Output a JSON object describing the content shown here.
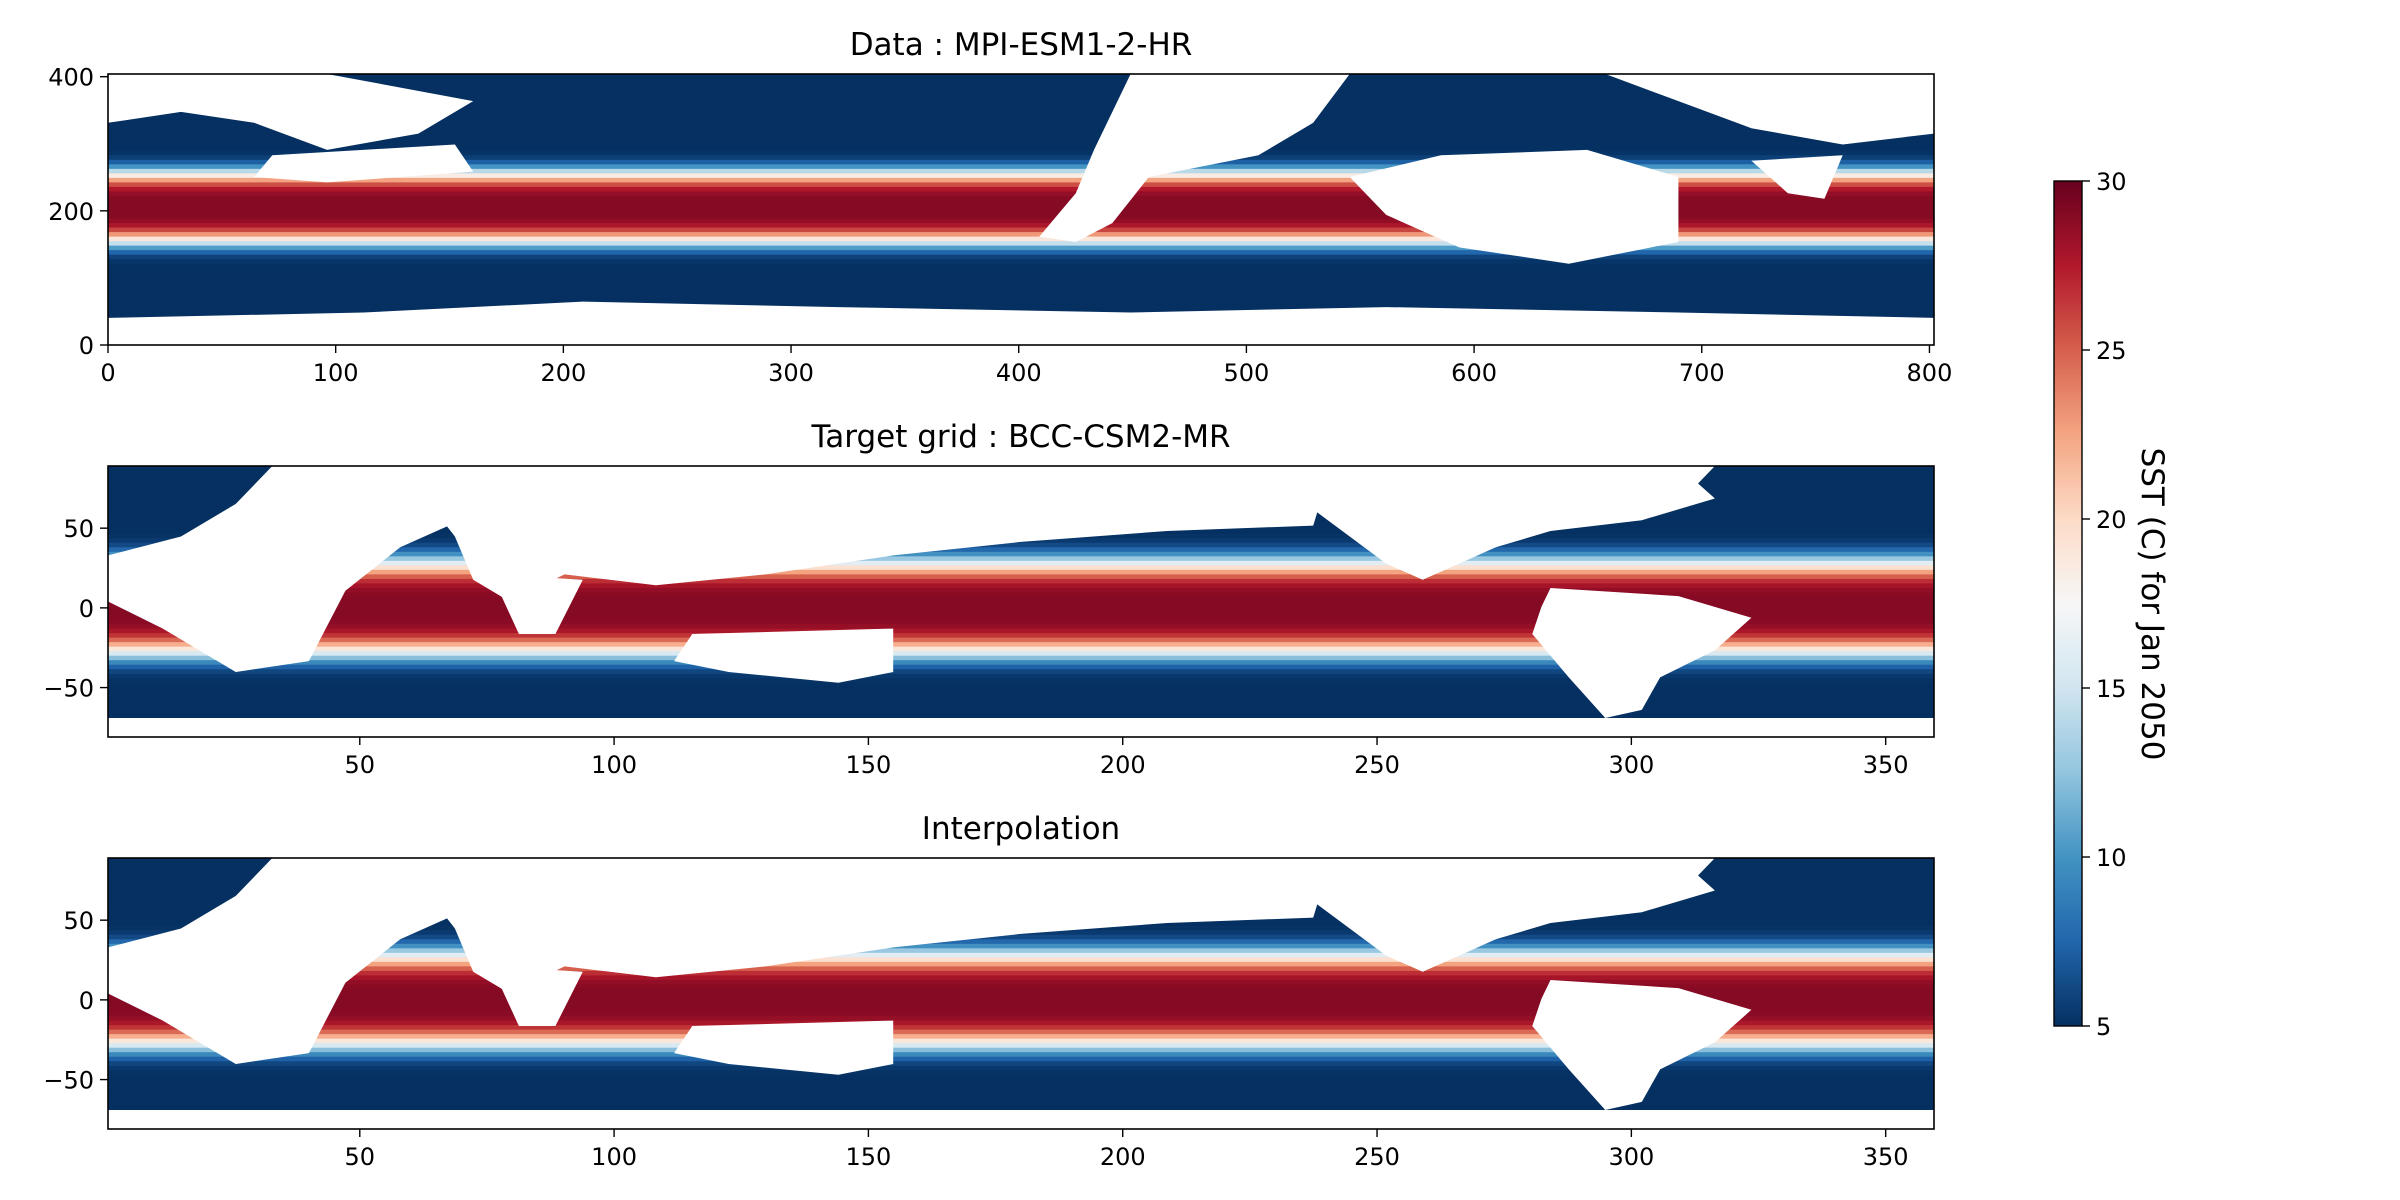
{
  "figure": {
    "colorbar": {
      "label": "SST (C)   for  Jan 2050",
      "vmin": 5,
      "vmax": 30,
      "ticks": [
        5,
        10,
        15,
        20,
        25,
        30
      ],
      "colormap": "RdBu_r",
      "colors": [
        "#053061",
        "#2166ac",
        "#4393c3",
        "#92c5de",
        "#d1e5f0",
        "#f7f7f7",
        "#fddbc7",
        "#f4a582",
        "#d6604d",
        "#b2182b",
        "#67001f"
      ]
    },
    "land_color": "#ffffff"
  },
  "chart_data": [
    {
      "type": "heatmap",
      "title": "Data : MPI-ESM1-2-HR",
      "xlabel": "",
      "ylabel": "",
      "xlim": [
        0,
        802
      ],
      "ylim": [
        0,
        404
      ],
      "xticks": [
        0,
        100,
        200,
        300,
        400,
        500,
        600,
        700,
        800
      ],
      "yticks": [
        0,
        200,
        400
      ],
      "value_range": [
        5,
        30
      ]
    },
    {
      "type": "heatmap",
      "title": "Target grid : BCC-CSM2-MR",
      "xlabel": "",
      "ylabel": "",
      "xlim": [
        0.5,
        359.5
      ],
      "ylim": [
        -81,
        89
      ],
      "xticks": [
        50,
        100,
        150,
        200,
        250,
        300,
        350
      ],
      "yticks": [
        -50,
        0,
        50
      ],
      "value_range": [
        5,
        30
      ]
    },
    {
      "type": "heatmap",
      "title": "Interpolation",
      "xlabel": "",
      "ylabel": "",
      "xlim": [
        0.5,
        359.5
      ],
      "ylim": [
        -81,
        89
      ],
      "xticks": [
        50,
        100,
        150,
        200,
        250,
        300,
        350
      ],
      "yticks": [
        -50,
        0,
        50
      ],
      "value_range": [
        5,
        30
      ]
    }
  ]
}
